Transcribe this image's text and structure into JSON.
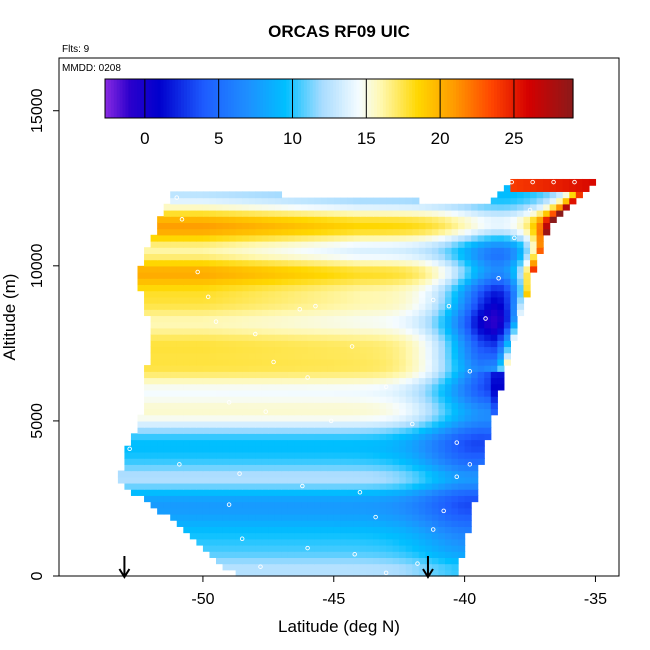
{
  "chart_data": {
    "type": "heatmap",
    "title": "ORCAS RF09 UIC",
    "flights_note": "Flts: 9",
    "date_note": "MMDD: 0208",
    "xlabel": "Latitude (deg N)",
    "ylabel": "Altitude (m)",
    "xlim": [
      -55.5,
      -34.1
    ],
    "ylim": [
      0,
      16700
    ],
    "x_ticks": [
      -50,
      -45,
      -40,
      -35
    ],
    "x_tick_labels": [
      "-50",
      "-45",
      "-40",
      "-35"
    ],
    "y_ticks": [
      0,
      5000,
      10000,
      15000
    ],
    "y_tick_labels": [
      "0",
      "5000",
      "10000",
      "15000"
    ],
    "colorbar": {
      "range": [
        -2.7,
        29
      ],
      "ticks": [
        0,
        5,
        10,
        15,
        20,
        25
      ],
      "tick_labels": [
        "0",
        "5",
        "10",
        "15",
        "20",
        "25"
      ],
      "stops": [
        {
          "v": -2.7,
          "c": "#8a2be2"
        },
        {
          "v": -1.0,
          "c": "#2b00cc"
        },
        {
          "v": 1.0,
          "c": "#0000cd"
        },
        {
          "v": 4.0,
          "c": "#1e5cff"
        },
        {
          "v": 7.0,
          "c": "#1e90ff"
        },
        {
          "v": 9.5,
          "c": "#00bfff"
        },
        {
          "v": 12.0,
          "c": "#a8dcff"
        },
        {
          "v": 14.5,
          "c": "#f5fcff"
        },
        {
          "v": 16.0,
          "c": "#fff8b0"
        },
        {
          "v": 18.5,
          "c": "#ffd700"
        },
        {
          "v": 21.0,
          "c": "#ff9900"
        },
        {
          "v": 23.5,
          "c": "#ff4500"
        },
        {
          "v": 26.0,
          "c": "#d40000"
        },
        {
          "v": 29.0,
          "c": "#8b1a1a"
        }
      ]
    },
    "domain_bounds": {
      "left_edge": [
        [
          0,
          -48.7
        ],
        [
          1000,
          -50.2
        ],
        [
          2000,
          -51.5
        ],
        [
          3000,
          -53.2
        ],
        [
          4000,
          -53.0
        ],
        [
          5000,
          -52.4
        ],
        [
          6000,
          -52.2
        ],
        [
          8000,
          -52.0
        ],
        [
          9500,
          -52.5
        ],
        [
          10500,
          -52.2
        ],
        [
          12300,
          -51.2
        ]
      ],
      "right_edge": [
        [
          0,
          -40.3
        ],
        [
          2000,
          -39.7
        ],
        [
          4000,
          -39.3
        ],
        [
          6000,
          -38.6
        ],
        [
          8000,
          -38.0
        ],
        [
          10000,
          -37.3
        ],
        [
          11500,
          -36.6
        ],
        [
          12700,
          -35.0
        ]
      ],
      "top_edge": [
        [
          -51.2,
          12300
        ],
        [
          -47.0,
          12300
        ],
        [
          -39.0,
          12000
        ],
        [
          -38.2,
          12700
        ],
        [
          -35.0,
          12700
        ]
      ]
    },
    "marker_lats": [
      -53.0,
      -41.4
    ],
    "observations": [
      {
        "lat": -51.0,
        "alt": 12200
      },
      {
        "lat": -50.8,
        "alt": 11500
      },
      {
        "lat": -50.2,
        "alt": 9800
      },
      {
        "lat": -49.8,
        "alt": 9000
      },
      {
        "lat": -49.5,
        "alt": 8200
      },
      {
        "lat": -48.0,
        "alt": 7800
      },
      {
        "lat": -46.3,
        "alt": 8600
      },
      {
        "lat": -45.7,
        "alt": 8700
      },
      {
        "lat": -44.3,
        "alt": 7400
      },
      {
        "lat": -47.3,
        "alt": 6900
      },
      {
        "lat": -46.0,
        "alt": 6400
      },
      {
        "lat": -43.0,
        "alt": 6100
      },
      {
        "lat": -49.0,
        "alt": 5600
      },
      {
        "lat": -47.6,
        "alt": 5300
      },
      {
        "lat": -45.1,
        "alt": 5000
      },
      {
        "lat": -42.0,
        "alt": 4900
      },
      {
        "lat": -52.8,
        "alt": 4100
      },
      {
        "lat": -50.9,
        "alt": 3600
      },
      {
        "lat": -48.6,
        "alt": 3300
      },
      {
        "lat": -46.2,
        "alt": 2900
      },
      {
        "lat": -44.0,
        "alt": 2700
      },
      {
        "lat": -49.0,
        "alt": 2300
      },
      {
        "lat": -43.4,
        "alt": 1900
      },
      {
        "lat": -41.2,
        "alt": 1500
      },
      {
        "lat": -48.5,
        "alt": 1200
      },
      {
        "lat": -46.0,
        "alt": 900
      },
      {
        "lat": -44.2,
        "alt": 700
      },
      {
        "lat": -47.8,
        "alt": 300
      },
      {
        "lat": -43.0,
        "alt": 100
      },
      {
        "lat": -41.8,
        "alt": 400
      },
      {
        "lat": -40.8,
        "alt": 2100
      },
      {
        "lat": -40.3,
        "alt": 4300
      },
      {
        "lat": -39.8,
        "alt": 6600
      },
      {
        "lat": -39.2,
        "alt": 8300
      },
      {
        "lat": -38.7,
        "alt": 9600
      },
      {
        "lat": -38.1,
        "alt": 10900
      },
      {
        "lat": -37.5,
        "alt": 11800
      },
      {
        "lat": -38.2,
        "alt": 12700
      },
      {
        "lat": -37.4,
        "alt": 12700
      },
      {
        "lat": -36.6,
        "alt": 12700
      },
      {
        "lat": -35.8,
        "alt": 12700
      },
      {
        "lat": -41.2,
        "alt": 8900
      },
      {
        "lat": -40.6,
        "alt": 8700
      },
      {
        "lat": -40.3,
        "alt": 3200
      },
      {
        "lat": -39.8,
        "alt": 3600
      }
    ]
  }
}
